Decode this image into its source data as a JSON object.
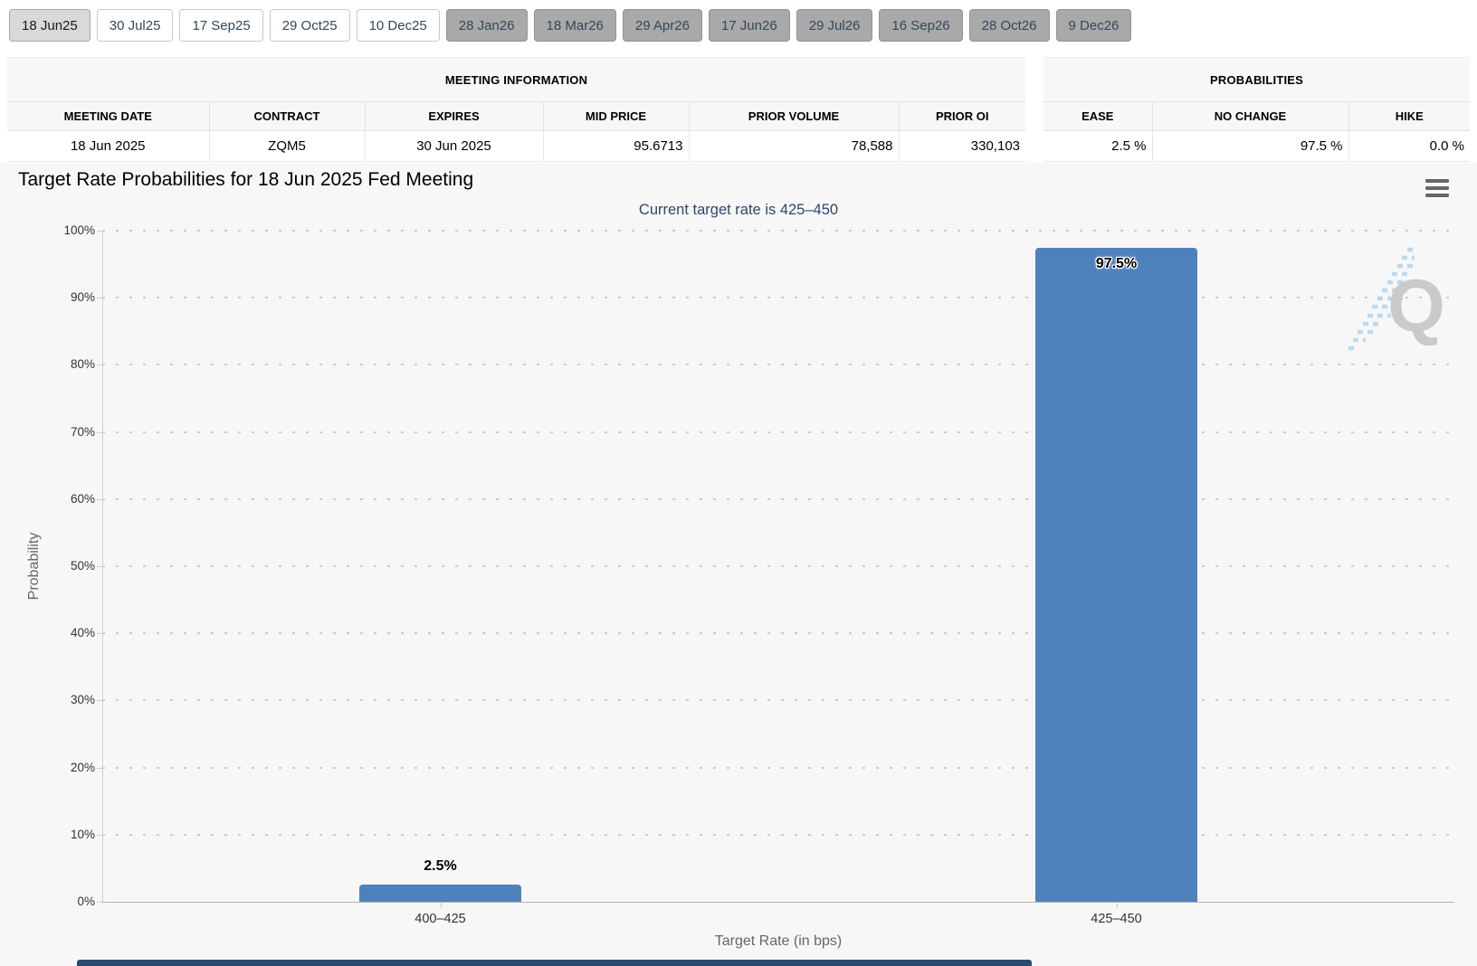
{
  "tabs": {
    "items": [
      {
        "label": "18 Jun25",
        "state": "selected"
      },
      {
        "label": "30 Jul25",
        "state": "active"
      },
      {
        "label": "17 Sep25",
        "state": "active"
      },
      {
        "label": "29 Oct25",
        "state": "active"
      },
      {
        "label": "10 Dec25",
        "state": "active"
      },
      {
        "label": "28 Jan26",
        "state": "muted"
      },
      {
        "label": "18 Mar26",
        "state": "muted"
      },
      {
        "label": "29 Apr26",
        "state": "muted"
      },
      {
        "label": "17 Jun26",
        "state": "muted"
      },
      {
        "label": "29 Jul26",
        "state": "muted"
      },
      {
        "label": "16 Sep26",
        "state": "muted"
      },
      {
        "label": "28 Oct26",
        "state": "muted"
      },
      {
        "label": "9 Dec26",
        "state": "muted"
      }
    ]
  },
  "meeting_info": {
    "title": "MEETING INFORMATION",
    "columns": [
      "MEETING DATE",
      "CONTRACT",
      "EXPIRES",
      "MID PRICE",
      "PRIOR VOLUME",
      "PRIOR OI"
    ],
    "row": [
      "18 Jun 2025",
      "ZQM5",
      "30 Jun 2025",
      "95.6713",
      "78,588",
      "330,103"
    ]
  },
  "probabilities": {
    "title": "PROBABILITIES",
    "columns": [
      "EASE",
      "NO CHANGE",
      "HIKE"
    ],
    "row": [
      "2.5 %",
      "97.5 %",
      "0.0 %"
    ]
  },
  "watermark": {
    "letter": "Q"
  },
  "chart_data": {
    "type": "bar",
    "title": "Target Rate Probabilities for 18 Jun 2025 Fed Meeting",
    "subtitle": "Current target rate is 425–450",
    "categories": [
      "400–425",
      "425–450"
    ],
    "values": [
      2.5,
      97.5
    ],
    "value_labels": [
      "2.5%",
      "97.5%"
    ],
    "xlabel": "Target Rate (in bps)",
    "ylabel": "Probability",
    "ylim": [
      0,
      100
    ],
    "ytick_step": 10,
    "ytick_labels": [
      "100%",
      "90%",
      "80%",
      "70%",
      "60%",
      "50%",
      "40%",
      "30%",
      "20%",
      "10%",
      "0%"
    ],
    "grid": "dotted-horizontal",
    "legend": "none",
    "bar_color": "#4f81bd"
  }
}
